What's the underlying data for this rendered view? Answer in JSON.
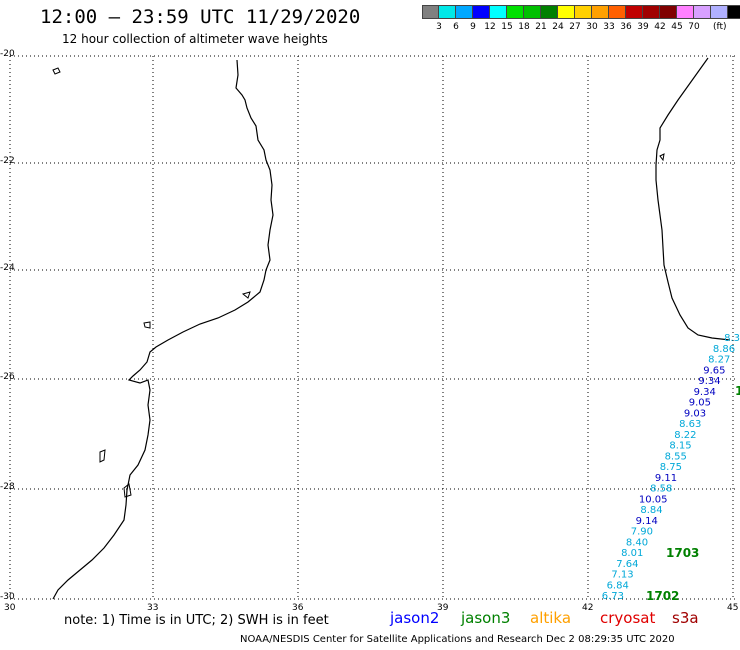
{
  "header": {
    "title": "12:00 – 23:59 UTC 11/29/2020",
    "subtitle": "12 hour collection of altimeter wave heights"
  },
  "legend_scale": {
    "colors": [
      "#808080",
      "#00e8e8",
      "#00a8ff",
      "#0000ff",
      "#00ffff",
      "#00e000",
      "#00c000",
      "#008000",
      "#ffff00",
      "#ffd000",
      "#ffa000",
      "#ff6000",
      "#c00000",
      "#a00000",
      "#800000",
      "#ff80ff",
      "#d8a0ff",
      "#b0b0ff",
      "#000000"
    ],
    "labels": [
      "3",
      "6",
      "9",
      "12",
      "15",
      "18",
      "21",
      "24",
      "27",
      "30",
      "33",
      "36",
      "39",
      "42",
      "45",
      "70"
    ],
    "unit": "(ft)"
  },
  "axes": {
    "lat_labels": [
      "-20",
      "-22",
      "-24",
      "-26",
      "-28",
      "-30"
    ],
    "lon_labels": [
      "30",
      "33",
      "36",
      "39",
      "42",
      "45"
    ]
  },
  "tracks": [
    {
      "label": "8.3",
      "color": "#00a8d8"
    },
    {
      "label": "8.86",
      "color": "#00a8d8"
    },
    {
      "label": "8.27",
      "color": "#00a8d8"
    },
    {
      "label": "9.65",
      "color": "#0000c0"
    },
    {
      "label": "9.34",
      "color": "#0000c0"
    },
    {
      "label": "9.34",
      "color": "#0000c0"
    },
    {
      "label": "9.05",
      "color": "#0000c0"
    },
    {
      "label": "9.03",
      "color": "#0000c0"
    },
    {
      "label": "8.63",
      "color": "#00a8d8"
    },
    {
      "label": "8.22",
      "color": "#00a8d8"
    },
    {
      "label": "8.15",
      "color": "#00a8d8"
    },
    {
      "label": "8.55",
      "color": "#00a8d8"
    },
    {
      "label": "8.75",
      "color": "#00a8d8"
    },
    {
      "label": "9.11",
      "color": "#0000c0"
    },
    {
      "label": "8.58",
      "color": "#00a8d8"
    },
    {
      "label": "10.05",
      "color": "#0000c0"
    },
    {
      "label": "8.84",
      "color": "#00a8d8"
    },
    {
      "label": "9.14",
      "color": "#0000c0"
    },
    {
      "label": "7.90",
      "color": "#00a8d8"
    },
    {
      "label": "8.40",
      "color": "#00a8d8"
    },
    {
      "label": "8.01",
      "color": "#00a8d8"
    },
    {
      "label": "7.64",
      "color": "#00a8d8"
    },
    {
      "label": "7.13",
      "color": "#00a8d8"
    },
    {
      "label": "6.84",
      "color": "#00a8d8"
    },
    {
      "label": "6.73",
      "color": "#00a8d8"
    }
  ],
  "pass_labels": [
    {
      "label": "1703",
      "color": "#008000"
    },
    {
      "label": "1702",
      "color": "#008000"
    },
    {
      "label": "1",
      "color": "#008000"
    }
  ],
  "footer": {
    "note": "note: 1) Time is in UTC; 2) SWH is in feet",
    "satellites": [
      {
        "name": "jason2",
        "color": "#0000ff"
      },
      {
        "name": "jason3",
        "color": "#008000"
      },
      {
        "name": "altika",
        "color": "#ffa000"
      },
      {
        "name": "cryosat",
        "color": "#e00000"
      },
      {
        "name": "s3a",
        "color": "#a00000"
      }
    ],
    "credit": "NOAA/NESDIS Center for Satellite Applications and Research    Dec  2 08:29:35 UTC 2020"
  }
}
